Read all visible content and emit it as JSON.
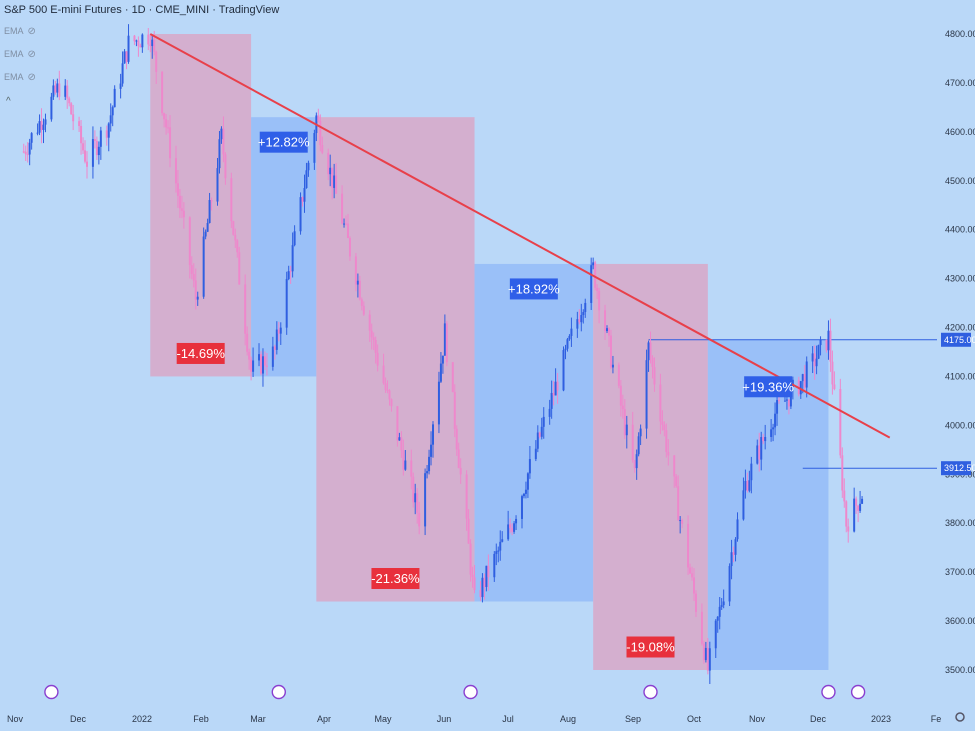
{
  "header": {
    "title": "S&P 500 E-mini Futures · 1D · CME_MINI · TradingView",
    "indicators": [
      "EMA",
      "EMA",
      "EMA"
    ]
  },
  "colors": {
    "background": "#bad8f8",
    "down_zone": "#d8a8c8",
    "up_zone": "#8fb8f8",
    "trendline": "#e8404a",
    "candle_up": "#2f5fe0",
    "candle_down": "#ee88cc",
    "label_down": "#e8303c",
    "label_up": "#2f5fe8"
  },
  "chart_data": {
    "type": "candlestick",
    "title": "S&P 500 E-mini Futures",
    "xlabel": "",
    "ylabel": "",
    "y_ticks": [
      "4800.00",
      "4700.00",
      "4600.00",
      "4500.00",
      "4400.00",
      "4300.00",
      "4200.00",
      "4100.00",
      "4000.00",
      "3900.00",
      "3800.00",
      "3700.00",
      "3600.00",
      "3500.00"
    ],
    "x_ticks": [
      "Nov",
      "Dec",
      "2022",
      "Feb",
      "Mar",
      "Apr",
      "May",
      "Jun",
      "Jul",
      "Aug",
      "Sep",
      "Oct",
      "Nov",
      "Dec",
      "2023",
      "Fe"
    ],
    "ylim": [
      3500,
      4800
    ],
    "swing_points": [
      {
        "date": "2021-11-01",
        "value": 4560
      },
      {
        "date": "2021-11-20",
        "value": 4700
      },
      {
        "date": "2021-12-03",
        "value": 4540
      },
      {
        "date": "2021-12-14",
        "value": 4620
      },
      {
        "date": "2021-12-24",
        "value": 4780
      },
      {
        "date": "2022-01-04",
        "value": 4800
      },
      {
        "date": "2022-01-27",
        "value": 4260
      },
      {
        "date": "2022-02-09",
        "value": 4590
      },
      {
        "date": "2022-02-24",
        "value": 4110
      },
      {
        "date": "2022-03-08",
        "value": 4150
      },
      {
        "date": "2022-03-29",
        "value": 4630
      },
      {
        "date": "2022-04-28",
        "value": 4150
      },
      {
        "date": "2022-05-20",
        "value": 3810
      },
      {
        "date": "2022-06-02",
        "value": 4190
      },
      {
        "date": "2022-06-17",
        "value": 3640
      },
      {
        "date": "2022-07-06",
        "value": 3800
      },
      {
        "date": "2022-08-16",
        "value": 4320
      },
      {
        "date": "2022-09-06",
        "value": 3900
      },
      {
        "date": "2022-09-13",
        "value": 4160
      },
      {
        "date": "2022-10-13",
        "value": 3500
      },
      {
        "date": "2022-11-01",
        "value": 3880
      },
      {
        "date": "2022-11-15",
        "value": 4020
      },
      {
        "date": "2022-12-01",
        "value": 4100
      },
      {
        "date": "2022-12-13",
        "value": 4180
      },
      {
        "date": "2022-12-22",
        "value": 3800
      },
      {
        "date": "2022-12-30",
        "value": 3860
      }
    ],
    "zones": [
      {
        "direction": "down",
        "label": "-14.69%",
        "start": "2022-01-04",
        "end": "2022-02-24",
        "high": 4800,
        "low": 4100
      },
      {
        "direction": "up",
        "label": "+12.82%",
        "start": "2022-02-24",
        "end": "2022-03-29",
        "high": 4630,
        "low": 4100
      },
      {
        "direction": "down",
        "label": "-21.36%",
        "start": "2022-03-29",
        "end": "2022-06-17",
        "high": 4630,
        "low": 3640
      },
      {
        "direction": "up",
        "label": "+18.92%",
        "start": "2022-06-17",
        "end": "2022-08-16",
        "high": 4330,
        "low": 3640
      },
      {
        "direction": "down",
        "label": "-19.08%",
        "start": "2022-08-16",
        "end": "2022-10-13",
        "high": 4330,
        "low": 3500
      },
      {
        "direction": "up",
        "label": "+19.36%",
        "start": "2022-10-13",
        "end": "2022-12-13",
        "high": 4175,
        "low": 3500
      }
    ],
    "trendline": {
      "start": {
        "date": "2022-01-04",
        "value": 4800
      },
      "end": {
        "date": "2023-01-13",
        "value": 3975
      }
    },
    "price_levels": [
      {
        "value": 4175,
        "label": "4175.00",
        "start": "2022-09-13"
      },
      {
        "value": 3912.5,
        "label": "3912.50",
        "start": "2022-11-30"
      }
    ],
    "event_markers": [
      "2021-11-15",
      "2022-03-10",
      "2022-06-15",
      "2022-09-14",
      "2022-12-13",
      "2022-12-28"
    ]
  }
}
